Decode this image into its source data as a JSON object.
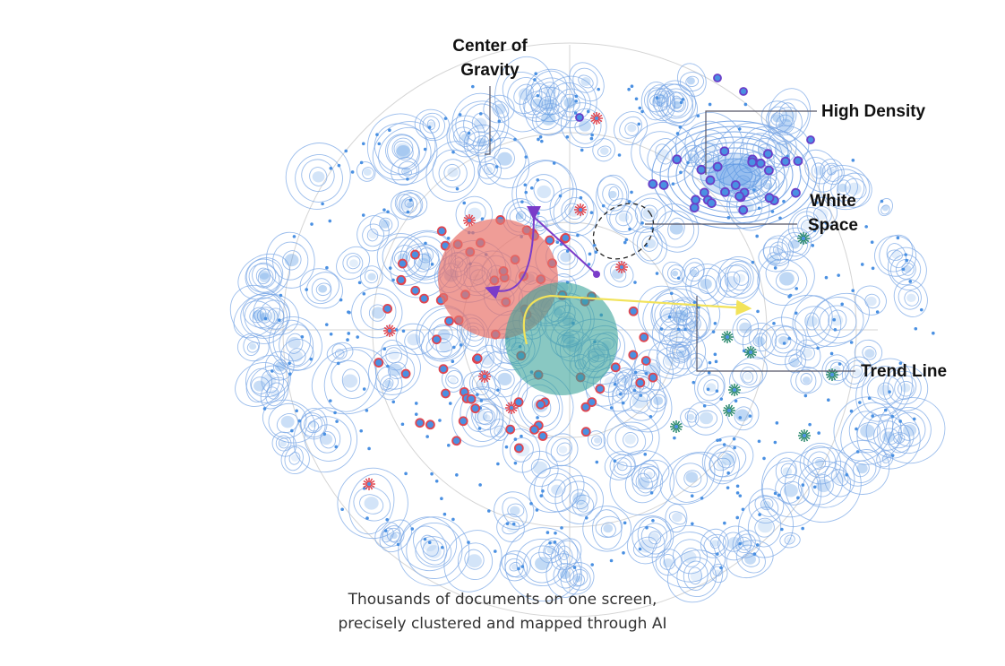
{
  "labels": {
    "center_of_gravity": [
      "Center of",
      "Gravity"
    ],
    "high_density": "High Density",
    "white_space": [
      "White",
      "Space"
    ],
    "trend_line": "Trend Line"
  },
  "caption": {
    "line1": "Thousands of documents on one screen,",
    "line2": "precisely clustered and mapped through AI"
  },
  "colors": {
    "contour": "#7aa7e6",
    "density": "#4a90e2",
    "red_docs": "#e0454f",
    "purple_docs": "#6a3fc8",
    "green_docs": "#2e8b6e",
    "center_circle": "#e8736b",
    "green_circle": "#3aa39a",
    "purple_arrow": "#7a3cc9",
    "trend_arrow": "#f2e35a",
    "leader_line": "#556"
  },
  "icons": [
    "starburst-marker-icon",
    "document-dot-icon"
  ]
}
